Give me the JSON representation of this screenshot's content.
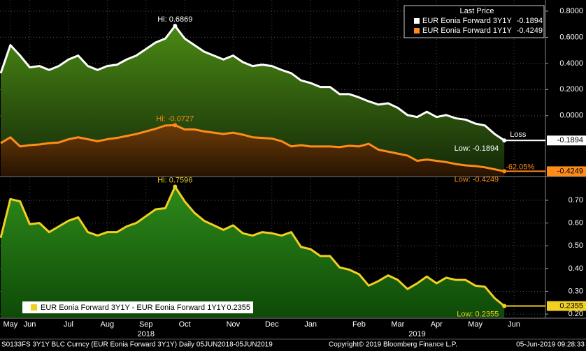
{
  "chart_data": [
    {
      "type": "area",
      "legend_title": "Last Price",
      "categories": [
        null,
        "May",
        null,
        "Jun",
        null,
        null,
        null,
        "Jul",
        null,
        null,
        null,
        "Aug",
        null,
        null,
        null,
        "Sep",
        null,
        null,
        null,
        "Oct",
        null,
        null,
        null,
        null,
        "Nov",
        null,
        null,
        null,
        "Dec",
        null,
        null,
        null,
        "Jan",
        null,
        null,
        null,
        null,
        "Feb",
        null,
        null,
        null,
        "Mar",
        null,
        null,
        null,
        "Apr",
        null,
        null,
        null,
        "May",
        null,
        null,
        null,
        "Jun",
        null
      ],
      "year_labels": [
        "2018",
        "2019"
      ],
      "series": [
        {
          "name": "EUR Eonia Forward 3Y1Y",
          "color": "#ffffff",
          "fill": "#3a6a10",
          "hi_label": "Hi: 0.6869",
          "low_label": "Low: -0.1894",
          "values": [
            0.325,
            0.54,
            0.46,
            0.37,
            0.38,
            0.35,
            0.38,
            0.43,
            0.46,
            0.38,
            0.35,
            0.38,
            0.39,
            0.43,
            0.46,
            0.51,
            0.56,
            0.59,
            0.6869,
            0.59,
            0.54,
            0.49,
            0.46,
            0.43,
            0.46,
            0.41,
            0.38,
            0.39,
            0.38,
            0.35,
            0.325,
            0.27,
            0.25,
            0.22,
            0.22,
            0.165,
            0.165,
            0.14,
            0.11,
            0.085,
            0.095,
            0.06,
            0.005,
            -0.01,
            0.03,
            -0.01,
            0.005,
            -0.02,
            -0.03,
            -0.06,
            -0.075,
            -0.14,
            -0.1894,
            null,
            null
          ]
        },
        {
          "name": "EUR Eonia Forward 1Y1Y",
          "color": "#ff8c1a",
          "fill": "#6a2a08",
          "hi_label": "Hi: -0.0727",
          "low_label": "Low: -0.4249",
          "values": [
            -0.21,
            -0.165,
            -0.235,
            -0.225,
            -0.22,
            -0.21,
            -0.205,
            -0.18,
            -0.165,
            -0.18,
            -0.195,
            -0.18,
            -0.17,
            -0.155,
            -0.14,
            -0.12,
            -0.1,
            -0.075,
            -0.0727,
            -0.105,
            -0.105,
            -0.12,
            -0.13,
            -0.14,
            -0.13,
            -0.145,
            -0.165,
            -0.17,
            -0.175,
            -0.195,
            -0.235,
            -0.225,
            -0.235,
            -0.235,
            -0.235,
            -0.24,
            -0.23,
            -0.235,
            -0.215,
            -0.26,
            -0.275,
            -0.29,
            -0.305,
            -0.345,
            -0.335,
            -0.345,
            -0.355,
            -0.37,
            -0.38,
            -0.385,
            -0.395,
            -0.41,
            -0.4249,
            null,
            null
          ]
        }
      ],
      "loss_label": "Loss",
      "change_label": "-62.05%",
      "ylim": [
        -0.46,
        0.885
      ],
      "yticks": [
        {
          "value": 0.8,
          "label": "0.8000"
        },
        {
          "value": 0.6,
          "label": "0.6000"
        },
        {
          "value": 0.4,
          "label": "0.4000"
        },
        {
          "value": 0.2,
          "label": "0.2000"
        },
        {
          "value": 0,
          "label": "0.0000"
        }
      ],
      "grid": true
    },
    {
      "type": "area",
      "series": [
        {
          "name": "EUR Eonia Forward 3Y1Y - EUR Eonia Forward 1Y1Y",
          "color": "#f0d020",
          "fill": "#1e6e12",
          "hi_label": "Hi: 0.7596",
          "low_label": "Low: 0.2355",
          "values": [
            0.535,
            0.705,
            0.695,
            0.595,
            0.6,
            0.56,
            0.585,
            0.61,
            0.625,
            0.56,
            0.545,
            0.56,
            0.56,
            0.585,
            0.6,
            0.63,
            0.66,
            0.665,
            0.7596,
            0.695,
            0.645,
            0.61,
            0.59,
            0.57,
            0.59,
            0.555,
            0.545,
            0.56,
            0.555,
            0.545,
            0.56,
            0.495,
            0.485,
            0.455,
            0.455,
            0.405,
            0.395,
            0.375,
            0.325,
            0.345,
            0.37,
            0.35,
            0.31,
            0.335,
            0.365,
            0.335,
            0.36,
            0.35,
            0.35,
            0.325,
            0.32,
            0.27,
            0.2355,
            null,
            null
          ]
        }
      ],
      "ylim": [
        0.185,
        0.798
      ],
      "yticks": [
        {
          "value": 0.7,
          "label": "0.70"
        },
        {
          "value": 0.6,
          "label": "0.60"
        },
        {
          "value": 0.5,
          "label": "0.50"
        },
        {
          "value": 0.4,
          "label": "0.40"
        },
        {
          "value": 0.3,
          "label": "0.30"
        },
        {
          "value": 0.2,
          "label": "0.20"
        }
      ],
      "grid": true
    }
  ],
  "footer": {
    "left": "S0133FS 3Y1Y BLC Curncy (EUR Eonia Forward 3Y1Y)  Daily 05JUN2018-05JUN2019",
    "center": "Copyright© 2019 Bloomberg Finance L.P.",
    "right": "05-Jun-2019 09:28:33"
  }
}
